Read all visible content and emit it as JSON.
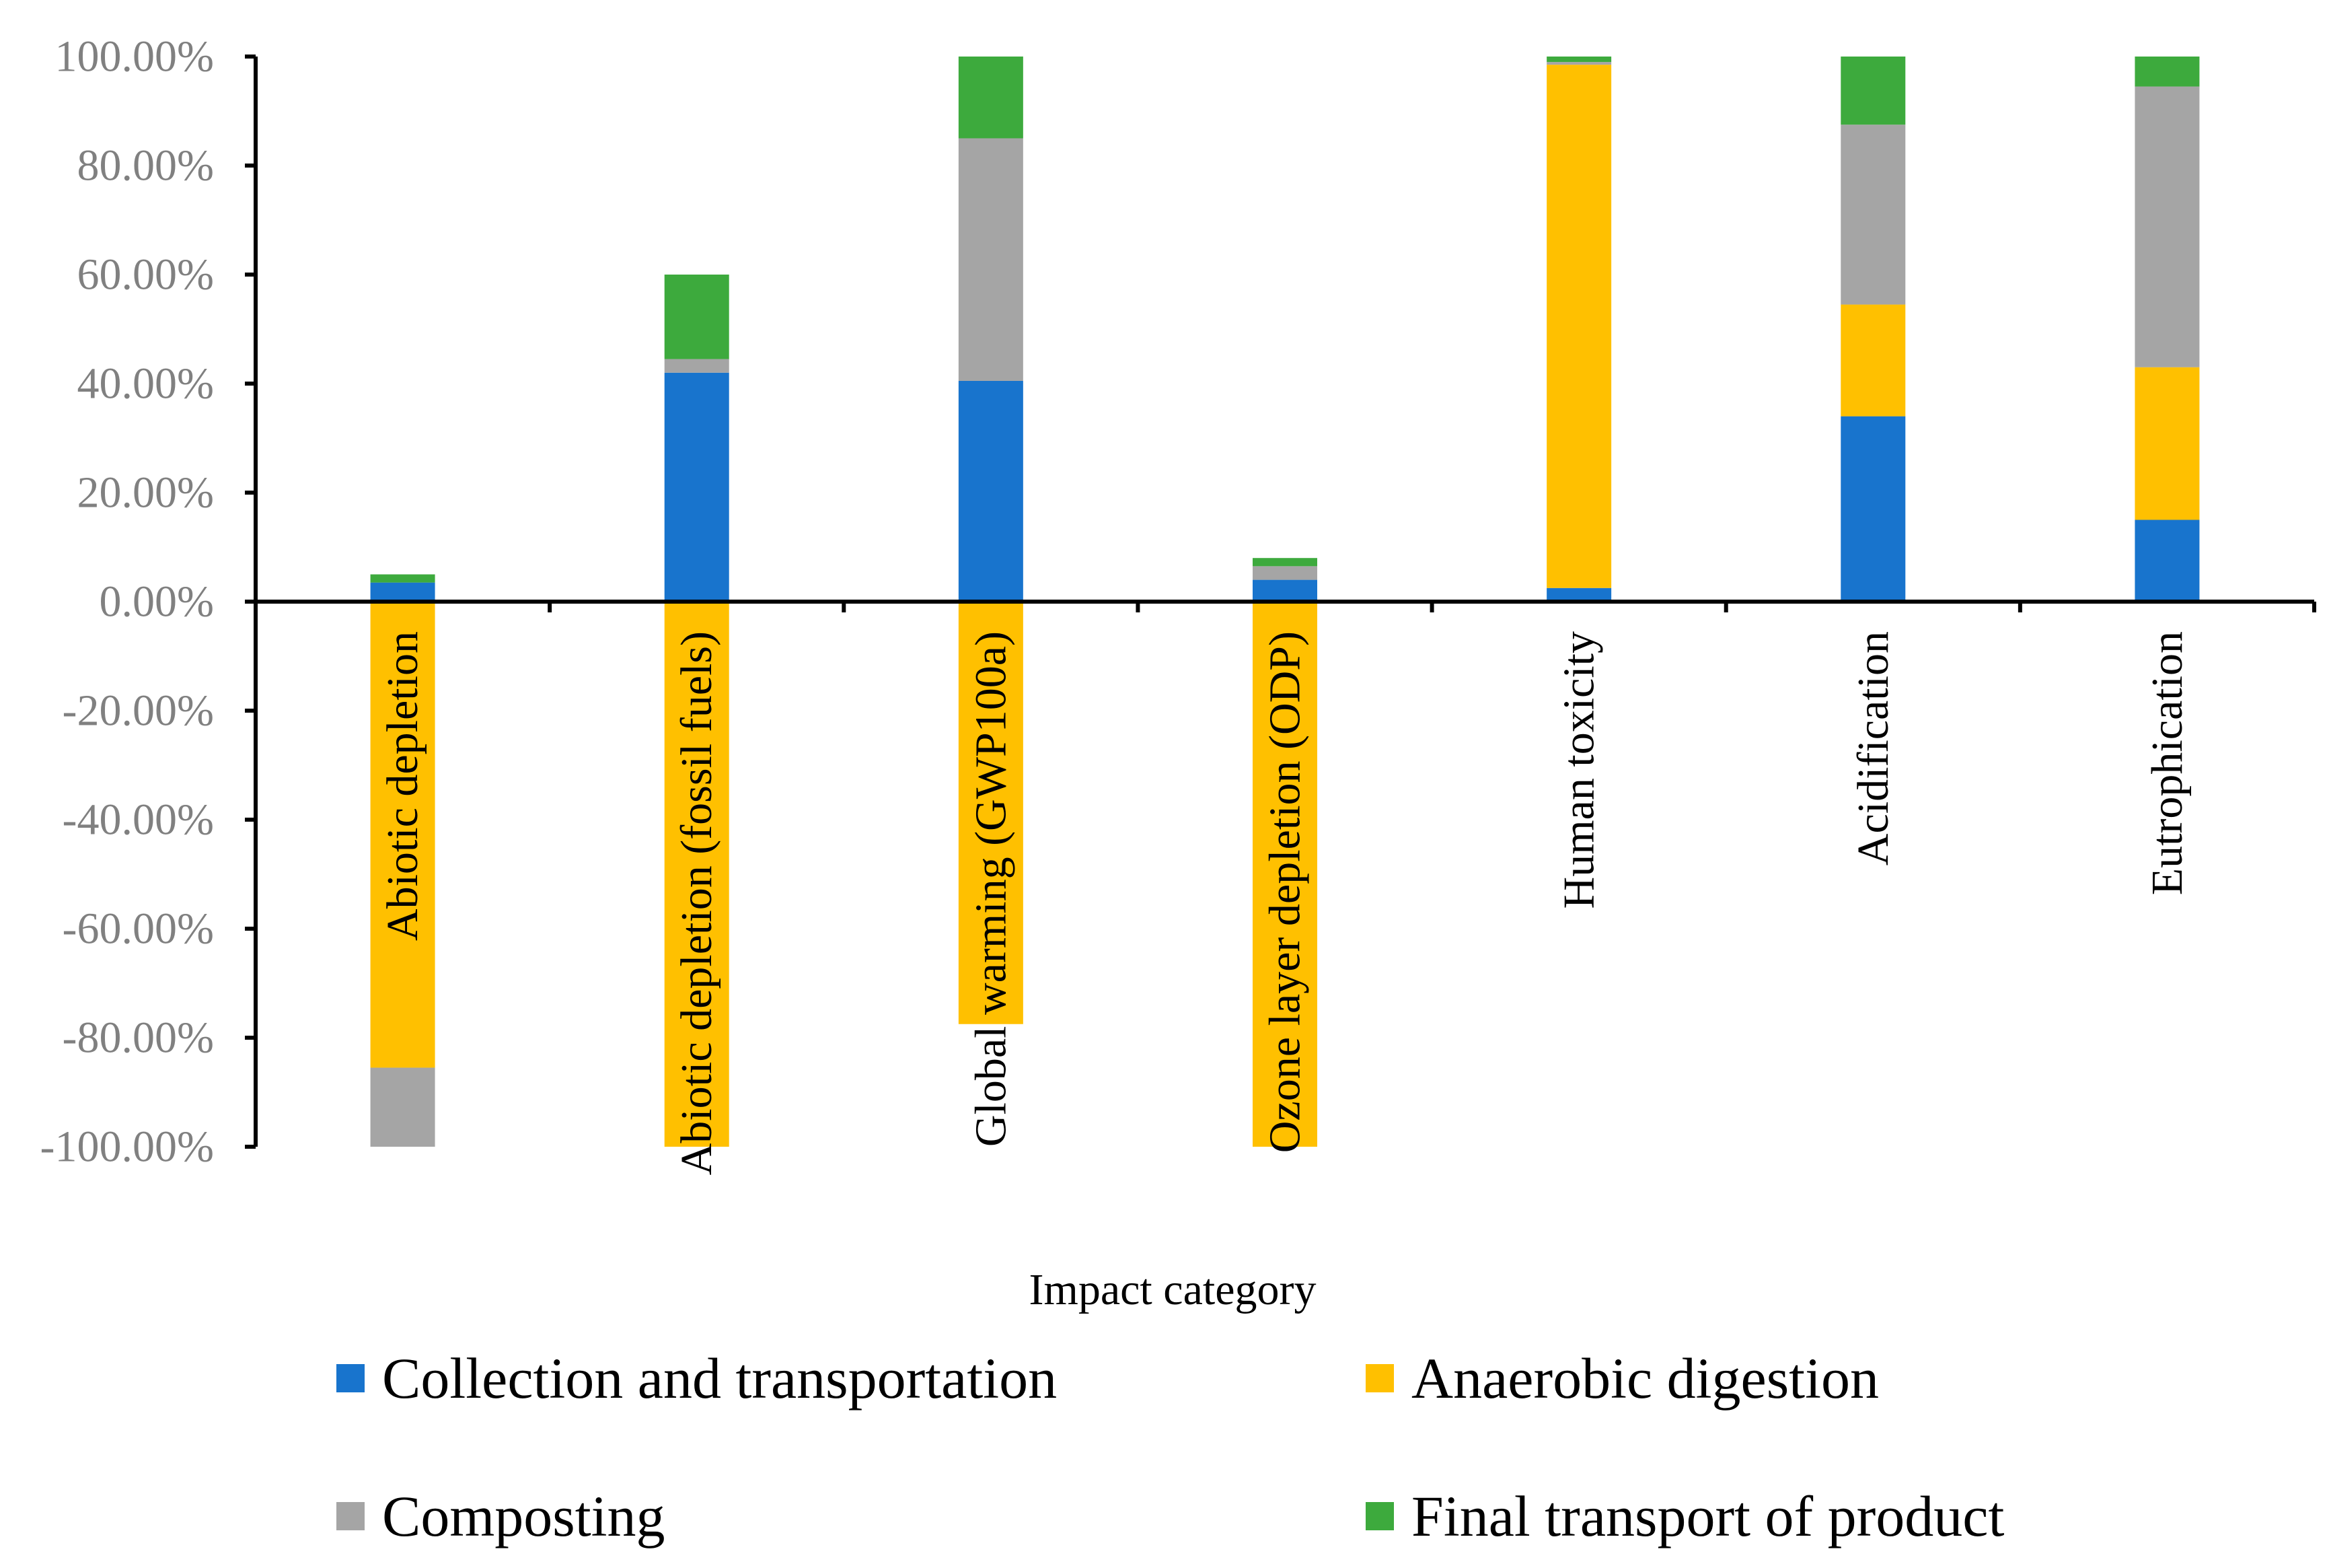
{
  "chart_data": {
    "type": "bar",
    "stacked": true,
    "title": "",
    "xlabel": "Impact category",
    "ylabel": "",
    "ylim": [
      -100,
      100
    ],
    "ytick_step": 20,
    "ytick_format": "percent_2dp",
    "grid": false,
    "legend_position": "bottom",
    "categories": [
      "Abiotic depletion",
      "Abiotic depletion (fossil fuels)",
      "Global warming (GWP100a)",
      "Ozone layer depletion (ODP)",
      "Human toxicity",
      "Acidification",
      "Eutrophication"
    ],
    "series": [
      {
        "name": "Collection and transportation",
        "color": "#1874CD",
        "values": [
          3.5,
          42.0,
          40.5,
          4.0,
          2.5,
          34.0,
          15.0
        ]
      },
      {
        "name": "Anaerobic digestion",
        "color": "#FFC000",
        "values": [
          -85.5,
          -100.0,
          -77.5,
          -100.0,
          96.0,
          20.5,
          28.0
        ]
      },
      {
        "name": "Composting",
        "color": "#A5A5A5",
        "values": [
          -14.5,
          2.5,
          44.5,
          2.5,
          0.5,
          33.0,
          51.5
        ]
      },
      {
        "name": "Final transport of product",
        "color": "#3DAA3D",
        "values": [
          1.5,
          15.5,
          15.0,
          1.5,
          1.0,
          12.5,
          5.5
        ]
      }
    ]
  }
}
